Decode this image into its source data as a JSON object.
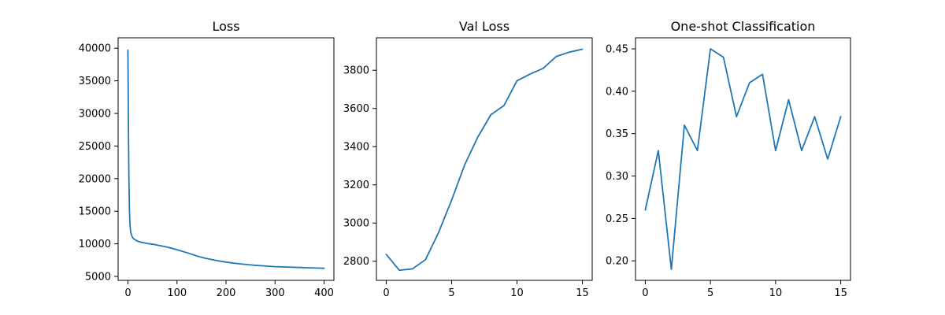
{
  "chart_data": [
    {
      "type": "line",
      "title": "Loss",
      "xlabel": "",
      "ylabel": "",
      "xlim": [
        -20,
        420
      ],
      "ylim": [
        4400,
        41600
      ],
      "xticks": [
        0,
        100,
        200,
        300,
        400
      ],
      "yticks": [
        5000,
        10000,
        15000,
        20000,
        25000,
        30000,
        35000,
        40000
      ],
      "grid": false,
      "color": "#1f77b4",
      "series": [
        {
          "x": [
            0,
            1,
            2,
            3,
            4,
            5,
            6,
            8,
            10,
            15,
            20,
            30,
            40,
            50,
            60,
            70,
            80,
            90,
            100,
            120,
            140,
            150,
            160,
            180,
            200,
            220,
            240,
            260,
            280,
            300,
            320,
            340,
            360,
            380,
            400
          ],
          "values": [
            39700,
            28000,
            20000,
            15500,
            13200,
            12200,
            11700,
            11200,
            10900,
            10600,
            10400,
            10200,
            10050,
            9950,
            9800,
            9650,
            9500,
            9300,
            9100,
            8650,
            8150,
            7950,
            7750,
            7450,
            7200,
            7000,
            6850,
            6700,
            6600,
            6500,
            6450,
            6400,
            6350,
            6300,
            6250
          ]
        }
      ]
    },
    {
      "type": "line",
      "title": "Val Loss",
      "xlabel": "",
      "ylabel": "",
      "xlim": [
        -0.75,
        15.75
      ],
      "ylim": [
        2700,
        3970
      ],
      "xticks": [
        0,
        5,
        10,
        15
      ],
      "yticks": [
        2800,
        3000,
        3200,
        3400,
        3600,
        3800
      ],
      "grid": false,
      "color": "#1f77b4",
      "series": [
        {
          "x": [
            0,
            1,
            2,
            3,
            4,
            5,
            6,
            7,
            8,
            9,
            10,
            11,
            12,
            13,
            14,
            15
          ],
          "values": [
            2836,
            2753,
            2760,
            2808,
            2950,
            3120,
            3305,
            3450,
            3567,
            3615,
            3745,
            3780,
            3810,
            3872,
            3895,
            3910
          ]
        }
      ]
    },
    {
      "type": "line",
      "title": "One-shot Classification",
      "xlabel": "",
      "ylabel": "",
      "xlim": [
        -0.75,
        15.75
      ],
      "ylim": [
        0.177,
        0.463
      ],
      "xticks": [
        0,
        5,
        10,
        15
      ],
      "yticks": [
        0.2,
        0.25,
        0.3,
        0.35,
        0.4,
        0.45
      ],
      "ytick_labels": [
        "0.20",
        "0.25",
        "0.30",
        "0.35",
        "0.40",
        "0.45"
      ],
      "grid": false,
      "color": "#1f77b4",
      "series": [
        {
          "x": [
            0,
            1,
            2,
            3,
            4,
            5,
            6,
            7,
            8,
            9,
            10,
            11,
            12,
            13,
            14,
            15
          ],
          "values": [
            0.26,
            0.33,
            0.19,
            0.36,
            0.33,
            0.45,
            0.44,
            0.37,
            0.41,
            0.42,
            0.33,
            0.39,
            0.33,
            0.37,
            0.32,
            0.37
          ]
        }
      ]
    }
  ]
}
